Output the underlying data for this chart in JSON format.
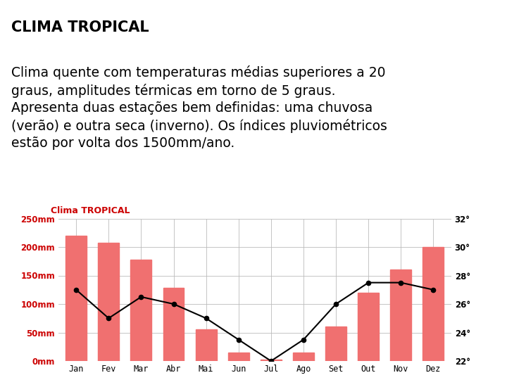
{
  "title_bold": "CLIMA TROPICAL",
  "subtitle_lines": [
    "Clima quente com temperaturas médias superiores a 20",
    "graus, amplitudes térmicas em torno de 5 graus.",
    "Apresenta duas estações bem definidas: uma chuvosa",
    "(verão) e outra seca (inverno). Os índices pluviométricos",
    "estão por volta dos 1500mm/ano."
  ],
  "chart_title": "Clima TROPICAL",
  "months": [
    "Jan",
    "Fev",
    "Mar",
    "Abr",
    "Mai",
    "Jun",
    "Jul",
    "Ago",
    "Set",
    "Out",
    "Nov",
    "Dez"
  ],
  "precipitation_mm": [
    220,
    208,
    178,
    128,
    55,
    15,
    3,
    15,
    60,
    120,
    160,
    200
  ],
  "temperature_c": [
    27.0,
    25.0,
    26.5,
    26.0,
    25.0,
    23.5,
    22.0,
    23.5,
    26.0,
    27.5,
    27.5,
    27.0
  ],
  "bar_color": "#F07070",
  "line_color": "#000000",
  "chart_title_color": "#CC0000",
  "left_axis_color": "#CC0000",
  "right_axis_color": "#000000",
  "background_color": "#FFFFFF",
  "ylim_precip": [
    0,
    250
  ],
  "ylim_temp": [
    22,
    32
  ],
  "precip_yticks": [
    0,
    50,
    100,
    150,
    200,
    250
  ],
  "precip_ytick_labels": [
    "0mm",
    "50mm",
    "100mm",
    "150mm",
    "200mm",
    "250mm"
  ],
  "temp_yticks": [
    22,
    24,
    26,
    28,
    30,
    32
  ],
  "temp_ytick_labels": [
    "22°",
    "24°",
    "26°",
    "28°",
    "30°",
    "32°"
  ],
  "title_fontsize": 15,
  "body_fontsize": 13.5,
  "chart_title_fontsize": 9,
  "tick_fontsize": 8.5
}
